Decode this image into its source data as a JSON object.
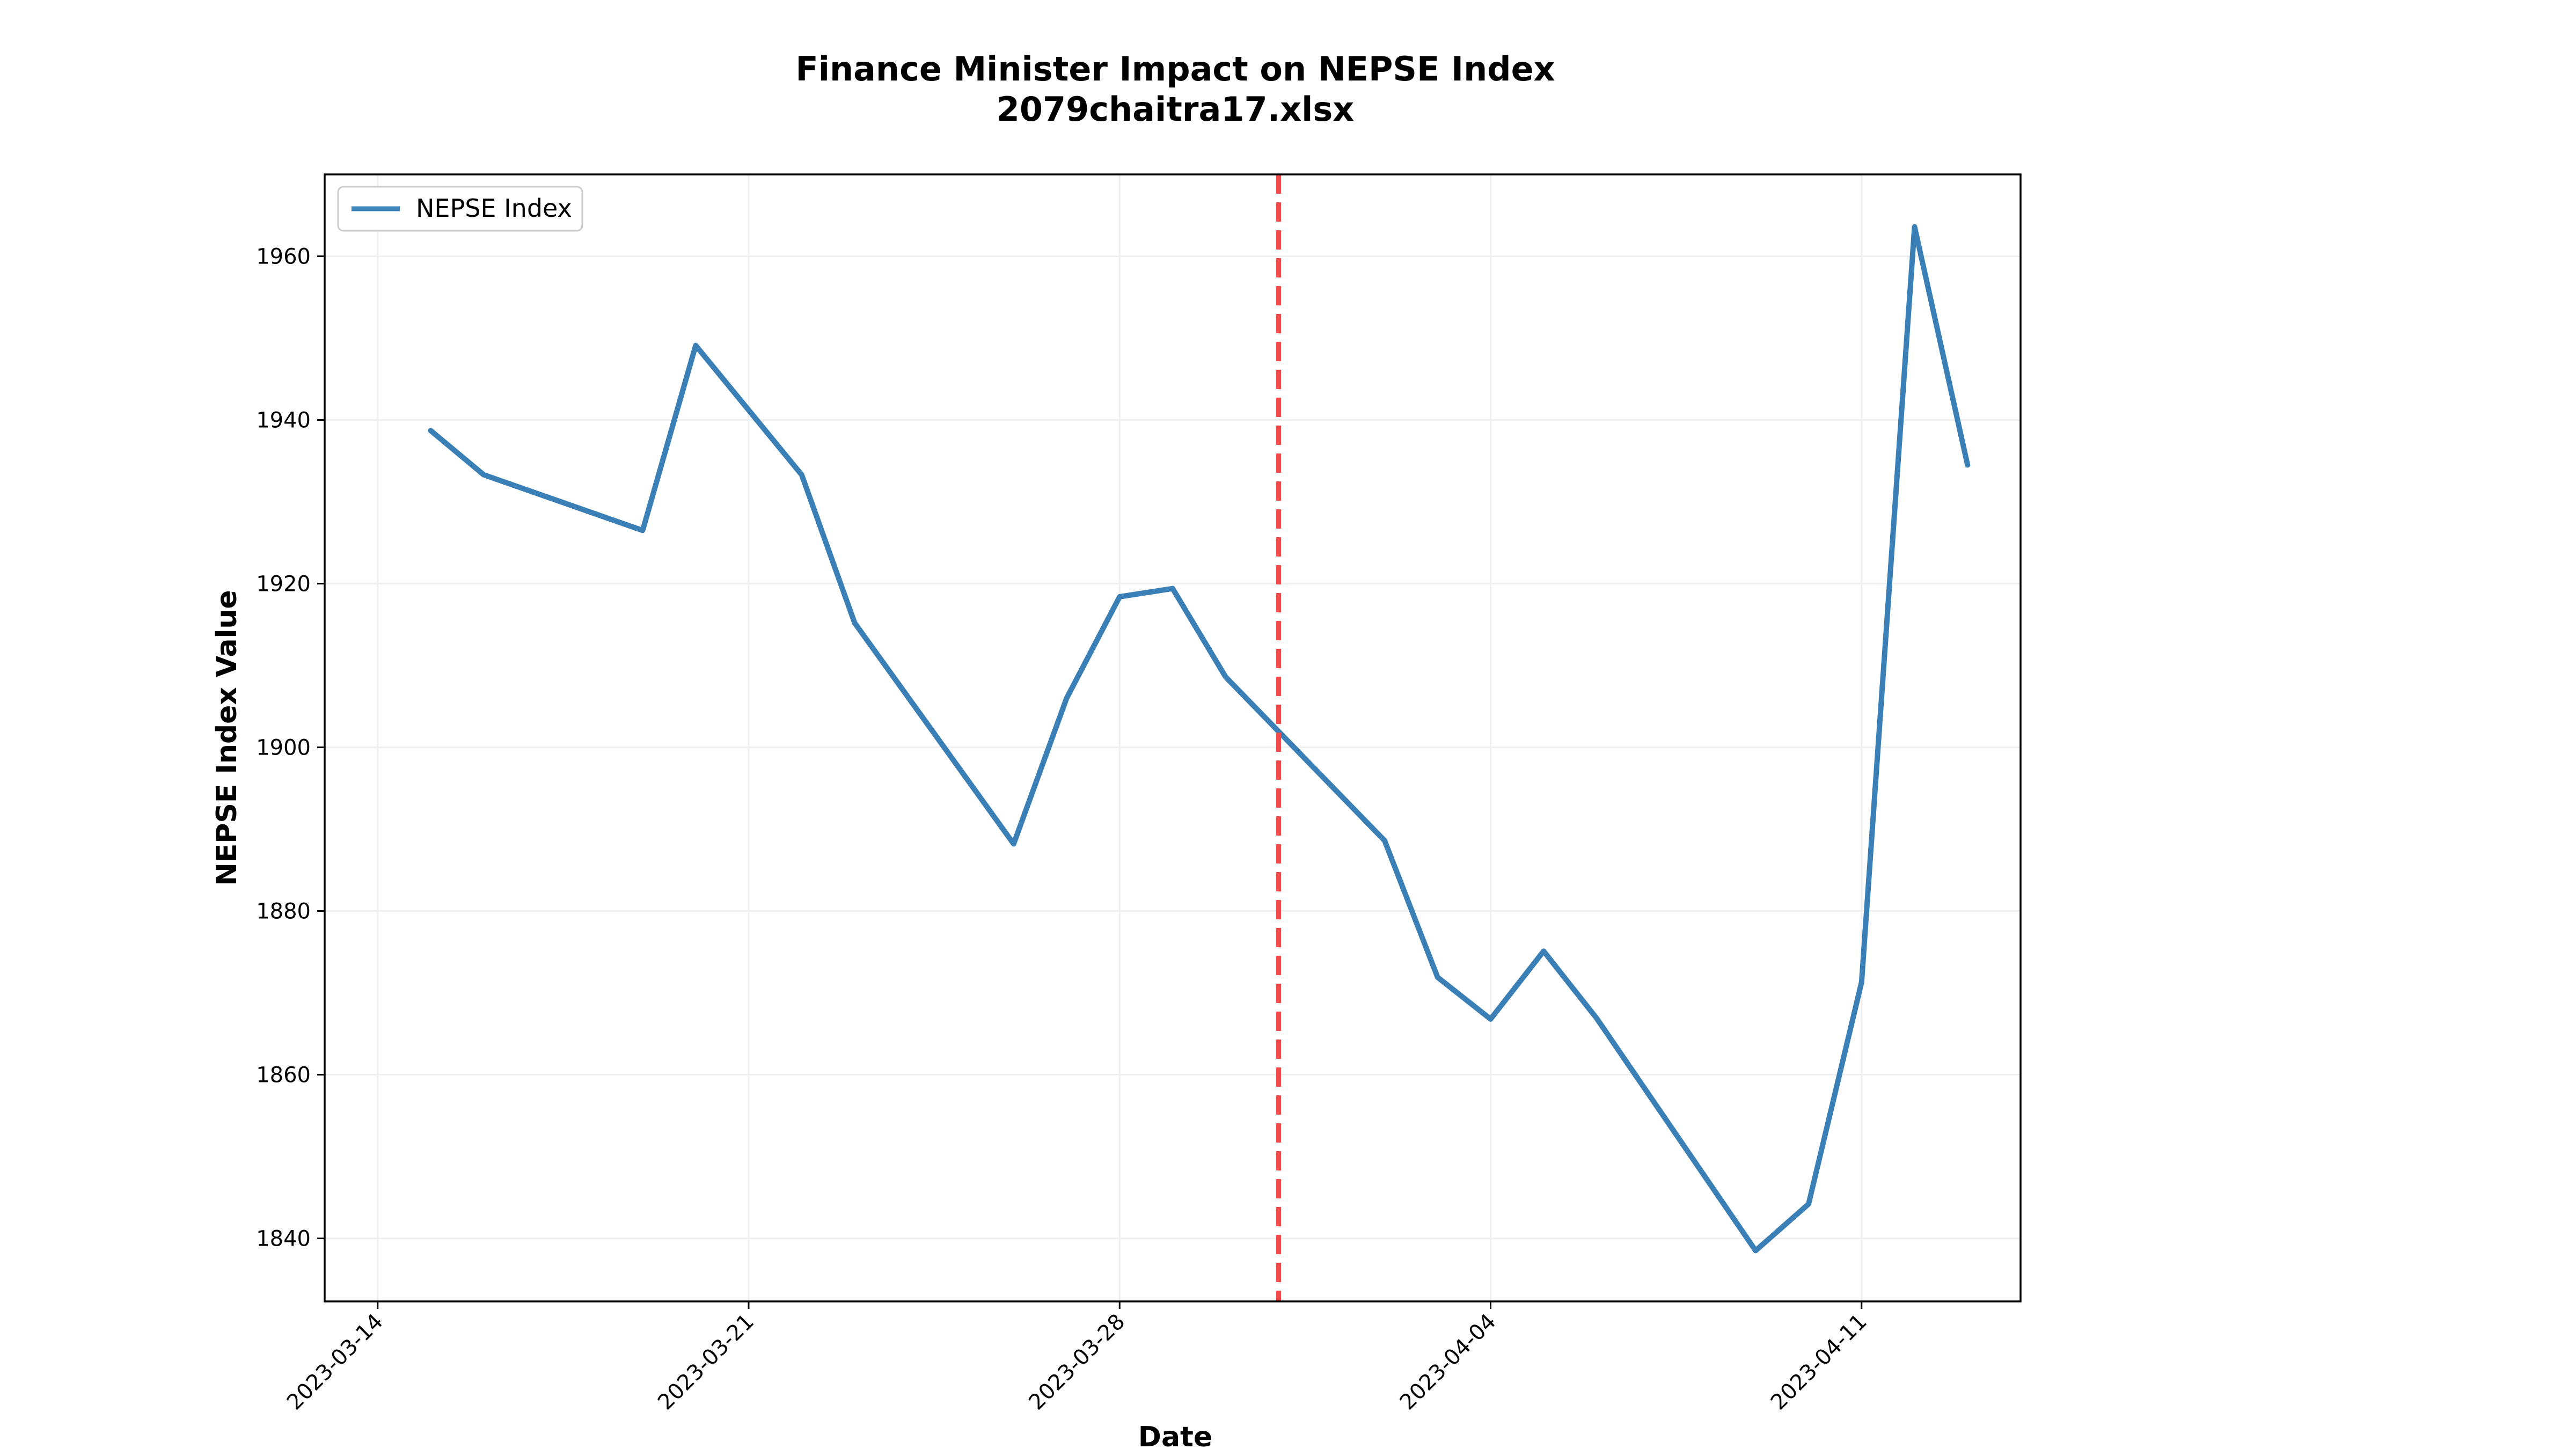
{
  "chart_data": {
    "type": "line",
    "title": "Finance Minister Impact on NEPSE Index",
    "subtitle": "2079chaitra17.xlsx",
    "xlabel": "Date",
    "ylabel": "NEPSE Index Value",
    "xlim": [
      "2023-03-13",
      "2023-04-14"
    ],
    "ylim": [
      1832.3,
      1970
    ],
    "grid": true,
    "legend_position": "upper-left",
    "x_ticks": [
      "2023-03-14",
      "2023-03-21",
      "2023-03-28",
      "2023-04-04",
      "2023-04-11"
    ],
    "y_ticks": [
      1840,
      1860,
      1880,
      1900,
      1920,
      1940,
      1960
    ],
    "series": [
      {
        "name": "NEPSE Index",
        "color": "#3a7fb5",
        "x": [
          "2023-03-15",
          "2023-03-16",
          "2023-03-19",
          "2023-03-20",
          "2023-03-22",
          "2023-03-23",
          "2023-03-26",
          "2023-03-27",
          "2023-03-28",
          "2023-03-29",
          "2023-03-30",
          "2023-04-02",
          "2023-04-03",
          "2023-04-04",
          "2023-04-05",
          "2023-04-06",
          "2023-04-09",
          "2023-04-10",
          "2023-04-11",
          "2023-04-12",
          "2023-04-13"
        ],
        "values": [
          1938.7,
          1933.3,
          1926.5,
          1949.1,
          1933.3,
          1915.2,
          1888.2,
          1906.0,
          1918.4,
          1919.4,
          1908.6,
          1888.6,
          1871.9,
          1866.8,
          1875.1,
          1866.9,
          1838.5,
          1844.2,
          1871.3,
          1963.6,
          1934.5
        ]
      }
    ],
    "reference_line": {
      "x": "2023-03-31",
      "color": "#f04a4a",
      "style": "dashed"
    }
  }
}
